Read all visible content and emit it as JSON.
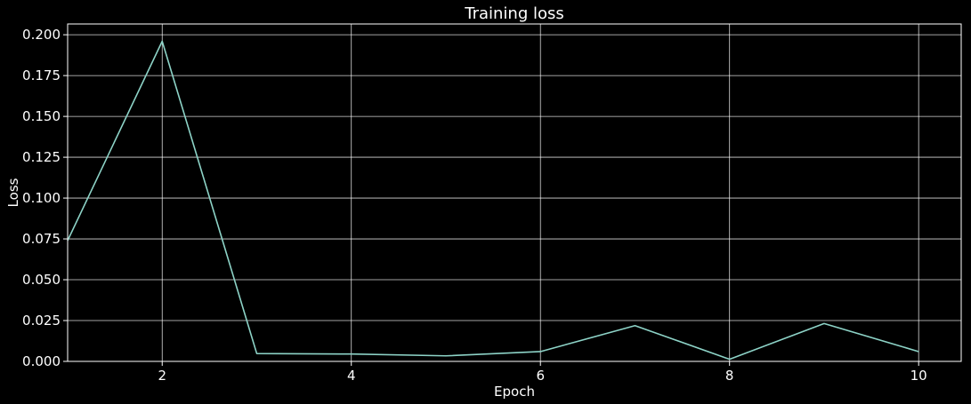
{
  "chart_data": {
    "type": "line",
    "title": "Training loss",
    "xlabel": "Epoch",
    "ylabel": "Loss",
    "xlim": [
      1,
      10.45
    ],
    "ylim": [
      0,
      0.2066
    ],
    "xticks": [
      2,
      4,
      6,
      8,
      10
    ],
    "xtick_labels": [
      "2",
      "4",
      "6",
      "8",
      "10"
    ],
    "yticks": [
      0.0,
      0.025,
      0.05,
      0.075,
      0.1,
      0.125,
      0.15,
      0.175,
      0.2
    ],
    "ytick_labels": [
      "0.000",
      "0.025",
      "0.050",
      "0.075",
      "0.100",
      "0.125",
      "0.150",
      "0.175",
      "0.200"
    ],
    "grid": true,
    "background": "#000000",
    "series": [
      {
        "color": "#8dd3c7",
        "x": [
          1,
          2,
          3,
          4,
          5,
          6,
          7,
          8,
          9,
          10
        ],
        "y": [
          0.074,
          0.196,
          0.0048,
          0.0045,
          0.0034,
          0.006,
          0.0219,
          0.0013,
          0.0232,
          0.006
        ]
      }
    ]
  }
}
